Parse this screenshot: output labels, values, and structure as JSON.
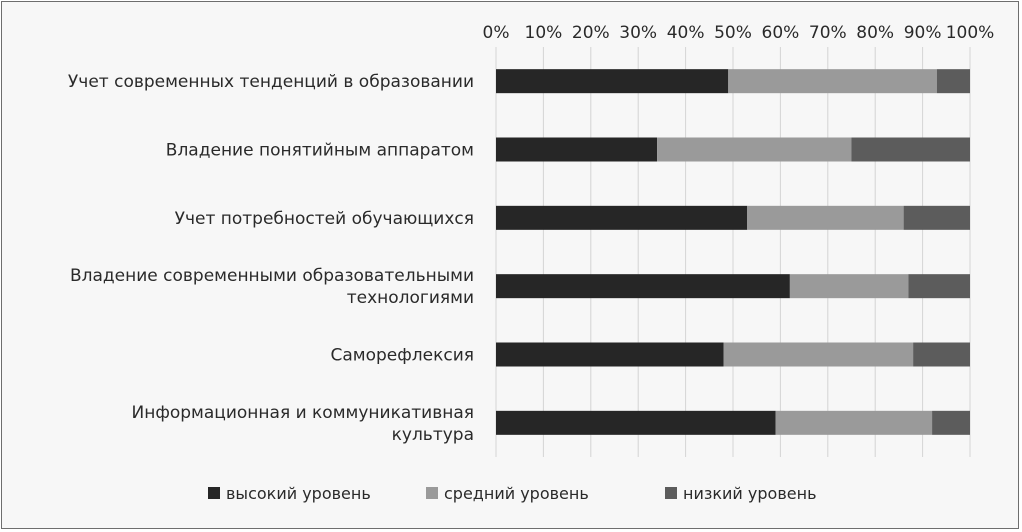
{
  "chart_data": {
    "type": "bar",
    "orientation": "horizontal",
    "stacked": "percent",
    "categories": [
      [
        "Учет современных тенденций в образовании"
      ],
      [
        "Владение понятийным аппаратом"
      ],
      [
        "Учет  потребностей обучающихся"
      ],
      [
        "Владение современными образовательными",
        "технологиями"
      ],
      [
        "Саморефлексия"
      ],
      [
        "Информационная и коммуникативная",
        "культура"
      ]
    ],
    "series": [
      {
        "name": "высокий уровень",
        "color": "#262626",
        "values": [
          49,
          34,
          53,
          62,
          48,
          59
        ]
      },
      {
        "name": "средний уровень",
        "color": "#9a9a9a",
        "values": [
          44,
          41,
          33,
          25,
          40,
          33
        ]
      },
      {
        "name": "низкий уровень",
        "color": "#5c5c5c",
        "values": [
          7,
          25,
          14,
          13,
          12,
          8
        ]
      }
    ],
    "x_ticks": [
      "0%",
      "10%",
      "20%",
      "30%",
      "40%",
      "50%",
      "60%",
      "70%",
      "80%",
      "90%",
      "100%"
    ],
    "xlim": [
      0,
      100
    ],
    "x_axis_position": "top",
    "grid": true,
    "legend_position": "bottom"
  }
}
